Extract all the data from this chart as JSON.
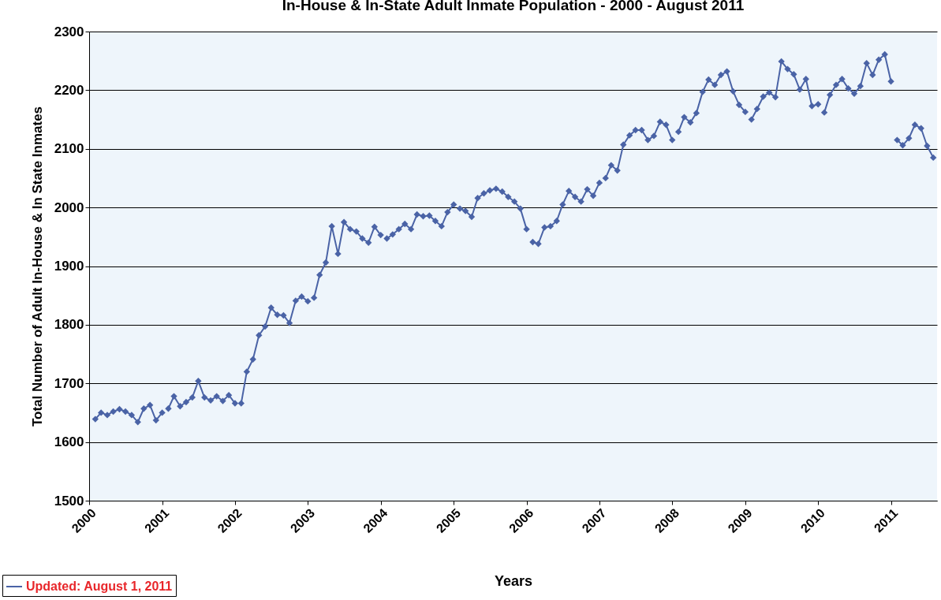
{
  "chart_data": {
    "type": "line",
    "title": "In-House & In-State Adult Inmate Population - 2000 - August 2011",
    "xlabel": "Years",
    "ylabel": "Total Number of Adult In-House & In State Inmates",
    "x": [
      "2000-02",
      "2000-03",
      "2000-04",
      "2000-05",
      "2000-06",
      "2000-07",
      "2000-08",
      "2000-09",
      "2000-10",
      "2000-11",
      "2000-12",
      "2001-01",
      "2001-01-16",
      "2001-02",
      "2001-03",
      "2001-04",
      "2001-05",
      "2001-06",
      "2001-07",
      "2001-08",
      "2001-09",
      "2001-10",
      "2001-11",
      "2001-12",
      "2002-01",
      "2002-01-16",
      "2002-02",
      "2002-03",
      "2002-04",
      "2002-05",
      "2002-06",
      "2002-07",
      "2002-08",
      "2002-09",
      "2002-10",
      "2002-11",
      "2002-12",
      "2003-01",
      "2003-01-16",
      "2003-02",
      "2003-03",
      "2003-04",
      "2003-05",
      "2003-06",
      "2003-07",
      "2003-08",
      "2003-09",
      "2003-10",
      "2003-11",
      "2003-12",
      "2004-01",
      "2004-01-16",
      "2004-02",
      "2004-03",
      "2004-04",
      "2004-05",
      "2004-06",
      "2004-07",
      "2004-08",
      "2004-09",
      "2004-10",
      "2004-11",
      "2004-12",
      "2005-01",
      "2005-01-16",
      "2005-02",
      "2005-03",
      "2005-04",
      "2005-05",
      "2005-06",
      "2005-07",
      "2005-08",
      "2005-09",
      "2005-10",
      "2005-11",
      "2005-12",
      "2006-01",
      "2006-01-16",
      "2006-02",
      "2006-03",
      "2006-04",
      "2006-05",
      "2006-06",
      "2006-07",
      "2006-08",
      "2006-09",
      "2006-10",
      "2006-11",
      "2006-12",
      "2007-01",
      "2007-01-16",
      "2007-02",
      "2007-03",
      "2007-04",
      "2007-05",
      "2007-06",
      "2007-07",
      "2007-08",
      "2007-09",
      "2007-10",
      "2007-11",
      "2007-12",
      "2008-01",
      "2008-01-16",
      "2008-02",
      "2008-03",
      "2008-04",
      "2008-05",
      "2008-06",
      "2008-07",
      "2008-08",
      "2008-09",
      "2008-10",
      "2008-11",
      "2008-12",
      "2009-01",
      "2009-01-16",
      "2009-02",
      "2009-03",
      "2009-04",
      "2009-05",
      "2009-06",
      "2009-07",
      "2009-08",
      "2009-09",
      "2009-10",
      "2009-11",
      "2009-12",
      "2010-01",
      "2010-01-16",
      "2010-02",
      "2010-03",
      "2010-04",
      "2010-05",
      "2010-06",
      "2010-07",
      "2010-08",
      "2010-09",
      "2010-10",
      "2010-11",
      "2010-12",
      "2011-01",
      "2011-01-16",
      "2011-02",
      "2011-03",
      "2011-04",
      "2011-05",
      "2011-06",
      "2011-07",
      "2011-08"
    ],
    "series": [
      {
        "name": "Updated: August 1, 2011",
        "color": "#4a63a6",
        "values": [
          1639,
          1650,
          1646,
          1652,
          1656,
          1652,
          1646,
          1634,
          1657,
          1663,
          1637,
          1650,
          null,
          1657,
          1678,
          1661,
          1668,
          1676,
          1704,
          1676,
          1671,
          1678,
          1670,
          1680,
          1666,
          null,
          1666,
          1720,
          1741,
          1782,
          1797,
          1829,
          1817,
          1816,
          1803,
          1841,
          1848,
          1840,
          null,
          1846,
          1885,
          1906,
          1968,
          1921,
          1975,
          1963,
          1959,
          1947,
          1940,
          1967,
          1953,
          null,
          1947,
          1954,
          1963,
          1972,
          1963,
          1988,
          1985,
          1986,
          1977,
          1968,
          1992,
          2005,
          null,
          1998,
          1994,
          1984,
          2016,
          2024,
          2029,
          2032,
          2027,
          2018,
          2010,
          1998,
          1963,
          null,
          1941,
          1938,
          1966,
          1968,
          1977,
          2005,
          2028,
          2018,
          2010,
          2031,
          2020,
          2042,
          null,
          2050,
          2072,
          2063,
          2107,
          2123,
          2132,
          2132,
          2115,
          2122,
          2146,
          2141,
          2115,
          null,
          2129,
          2154,
          2145,
          2161,
          2197,
          2218,
          2209,
          2226,
          2232,
          2198,
          2175,
          2163,
          null,
          2150,
          2168,
          2189,
          2196,
          2188,
          2249,
          2236,
          2227,
          2201,
          2219,
          2173,
          2176,
          null,
          2162,
          2192,
          2209,
          2219,
          2203,
          2194,
          2207,
          2246,
          2226,
          2252,
          2261,
          2215,
          null,
          2115,
          2106,
          2118,
          2141,
          2135,
          2105,
          2085
        ]
      }
    ],
    "xlim": [
      "2000-01-01",
      "2011-08-20"
    ],
    "xticks": [
      "2000",
      "2001",
      "2002",
      "2003",
      "2004",
      "2005",
      "2006",
      "2007",
      "2008",
      "2009",
      "2010",
      "2011"
    ],
    "ylim": [
      1500,
      2300
    ],
    "yticks": [
      1500,
      1600,
      1700,
      1800,
      1900,
      2000,
      2100,
      2200,
      2300
    ],
    "grid": "y",
    "legend": "bottom left",
    "marker": "diamond",
    "line_style": "solid"
  }
}
